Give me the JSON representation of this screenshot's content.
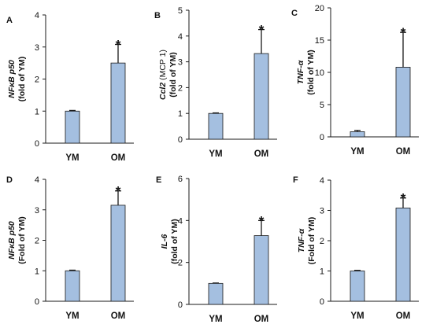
{
  "colors": {
    "bar_fill": "#a4bfe0",
    "bar_stroke": "#1a1a1a",
    "axis": "#1a1a1a"
  },
  "chart_data": [
    {
      "type": "bar",
      "panel": "A",
      "ylabel_italic": "NFκB p50",
      "ylabel_normal": "(fold of YM)",
      "categories": [
        "YM",
        "OM"
      ],
      "values": [
        1,
        2.5
      ],
      "errors": [
        0.02,
        0.58
      ],
      "significance": [
        "",
        "*"
      ],
      "ylim": [
        0,
        4
      ],
      "yticks": [
        0,
        1,
        2,
        3,
        4
      ]
    },
    {
      "type": "bar",
      "panel": "B",
      "ylabel_italic": "Ccl2",
      "ylabel_normal": "(MCP 1)",
      "ylabel_line2": "(fold of YM)",
      "categories": [
        "YM",
        "OM"
      ],
      "values": [
        1,
        3.32
      ],
      "errors": [
        0.02,
        0.93
      ],
      "significance": [
        "",
        "*"
      ],
      "ylim": [
        0,
        5
      ],
      "yticks": [
        0,
        1,
        2,
        3,
        4,
        5
      ]
    },
    {
      "type": "bar",
      "panel": "C",
      "ylabel_italic": "TNF-α",
      "ylabel_normal": "(fold of YM)",
      "categories": [
        "YM",
        "OM"
      ],
      "values": [
        0.8,
        10.8
      ],
      "errors": [
        0.2,
        5.4
      ],
      "significance": [
        "",
        "*"
      ],
      "ylim": [
        0,
        20
      ],
      "yticks": [
        0,
        5,
        10,
        15,
        20
      ]
    },
    {
      "type": "bar",
      "panel": "D",
      "ylabel_italic": "NFκB p50",
      "ylabel_normal": "(Fold of YM)",
      "categories": [
        "YM",
        "OM"
      ],
      "values": [
        1,
        3.15
      ],
      "errors": [
        0.02,
        0.47
      ],
      "significance": [
        "",
        "*"
      ],
      "ylim": [
        0,
        4
      ],
      "yticks": [
        0,
        1,
        2,
        3,
        4
      ]
    },
    {
      "type": "bar",
      "panel": "E",
      "ylabel_italic": "IL-6",
      "ylabel_normal": "(fold of YM)",
      "categories": [
        "YM",
        "OM"
      ],
      "values": [
        1,
        3.28
      ],
      "errors": [
        0.02,
        0.72
      ],
      "significance": [
        "",
        "*"
      ],
      "ylim": [
        0,
        6
      ],
      "yticks": [
        0,
        2,
        4,
        6
      ]
    },
    {
      "type": "bar",
      "panel": "F",
      "ylabel_italic": "TNF-α",
      "ylabel_normal": "(Fold  of YM)",
      "categories": [
        "YM",
        "OM"
      ],
      "values": [
        1,
        3.08
      ],
      "errors": [
        0.02,
        0.33
      ],
      "significance": [
        "",
        "*"
      ],
      "ylim": [
        0,
        4
      ],
      "yticks": [
        0,
        1,
        2,
        3,
        4
      ]
    }
  ]
}
